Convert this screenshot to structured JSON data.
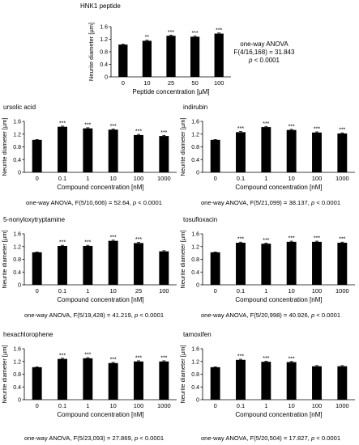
{
  "figure": {
    "bar_color": "#000000",
    "axis_color": "#000000",
    "background": "#ffffff",
    "significance_marker_note": "stars shown above bars"
  },
  "chart_data": [
    {
      "id": "hnk1",
      "type": "bar",
      "title": "HNK1 peptide",
      "categories": [
        "0",
        "10",
        "25",
        "50",
        "100"
      ],
      "values": [
        1.03,
        1.15,
        1.31,
        1.28,
        1.38
      ],
      "errors": [
        0.01,
        0.02,
        0.02,
        0.02,
        0.02
      ],
      "sig": [
        "",
        "**",
        "***",
        "***",
        "***"
      ],
      "ylabel": "Neurite diameter [µm]",
      "xlabel": "Peptide concentration [µM]",
      "ylim": [
        0,
        1.6
      ],
      "yticks": [
        "0",
        "0.4",
        "0.8",
        "1.2",
        "1.6"
      ],
      "stats": {
        "line1": "one-way ANOVA",
        "line2": "F(4/16,168) = 31.843",
        "line3_p": "p",
        "line3_rest": " < 0.0001"
      }
    },
    {
      "id": "ursolic",
      "type": "bar",
      "title": "ursolic acid",
      "categories": [
        "0",
        "0.1",
        "1",
        "10",
        "100",
        "1000"
      ],
      "values": [
        1.02,
        1.43,
        1.38,
        1.34,
        1.17,
        1.14
      ],
      "errors": [
        0.01,
        0.02,
        0.02,
        0.02,
        0.02,
        0.02
      ],
      "sig": [
        "",
        "***",
        "***",
        "***",
        "***",
        "***"
      ],
      "ylabel": "Neurite diameter [µm]",
      "xlabel": "Compound concentration [nM]",
      "ylim": [
        0,
        1.6
      ],
      "yticks": [
        "0",
        "0.4",
        "0.8",
        "1.2",
        "1.6"
      ],
      "stats": {
        "prefix": "one-way ANOVA, F(5/10,606) = 52.64, ",
        "p": "p",
        "suffix": " < 0.0001"
      }
    },
    {
      "id": "indirubin",
      "type": "bar",
      "title": "indirubin",
      "categories": [
        "0",
        "0.1",
        "1",
        "10",
        "100",
        "1000"
      ],
      "values": [
        1.02,
        1.26,
        1.42,
        1.33,
        1.25,
        1.22
      ],
      "errors": [
        0.01,
        0.02,
        0.02,
        0.02,
        0.02,
        0.02
      ],
      "sig": [
        "",
        "***",
        "***",
        "***",
        "***",
        "***"
      ],
      "ylabel": "Neurite diameter [µm]",
      "xlabel": "Compound concentration [nM]",
      "ylim": [
        0,
        1.6
      ],
      "yticks": [
        "0",
        "0.4",
        "0.8",
        "1.2",
        "1.6"
      ],
      "stats": {
        "prefix": "one-way ANOVA, F(5/21,099) = 38.137, ",
        "p": "p",
        "suffix": " < 0.0001"
      }
    },
    {
      "id": "nonyloxy",
      "type": "bar",
      "title": "5-nonyloxytryptamine",
      "categories": [
        "0",
        "0.1",
        "1",
        "10",
        "25",
        "100"
      ],
      "values": [
        1.02,
        1.22,
        1.22,
        1.38,
        1.31,
        1.05
      ],
      "errors": [
        0.01,
        0.02,
        0.02,
        0.02,
        0.02,
        0.02
      ],
      "sig": [
        "",
        "***",
        "***",
        "***",
        "***",
        ""
      ],
      "ylabel": "Neurite diameter [µm]",
      "xlabel": "Compound concentration [nM]",
      "ylim": [
        0,
        1.6
      ],
      "yticks": [
        "0",
        "0.4",
        "0.8",
        "1.2",
        "1.6"
      ],
      "stats": {
        "prefix": "one-way ANOVA, F(5/19,428) = 41.219, ",
        "p": "p",
        "suffix": " < 0.0001"
      }
    },
    {
      "id": "tosufloxacin",
      "type": "bar",
      "title": "tosufloxacin",
      "categories": [
        "0",
        "0.1",
        "1",
        "10",
        "100",
        "1000"
      ],
      "values": [
        1.02,
        1.32,
        1.29,
        1.35,
        1.35,
        1.32
      ],
      "errors": [
        0.01,
        0.02,
        0.02,
        0.02,
        0.02,
        0.02
      ],
      "sig": [
        "",
        "***",
        "***",
        "***",
        "***",
        "***"
      ],
      "ylabel": "Neurite diameter [µm]",
      "xlabel": "Compound concentration [nM]",
      "ylim": [
        0,
        1.6
      ],
      "yticks": [
        "0",
        "0.4",
        "0.8",
        "1.2",
        "1.6"
      ],
      "stats": {
        "prefix": "one-way ANOVA, F(5/20,998) = 40.926, ",
        "p": "p",
        "suffix": " < 0.0001"
      }
    },
    {
      "id": "hexachlorophene",
      "type": "bar",
      "title": "hexachlorophene",
      "categories": [
        "0",
        "0.1",
        "1",
        "10",
        "100",
        "1000"
      ],
      "values": [
        1.02,
        1.28,
        1.3,
        1.15,
        1.2,
        1.2
      ],
      "errors": [
        0.01,
        0.02,
        0.02,
        0.02,
        0.02,
        0.02
      ],
      "sig": [
        "",
        "***",
        "***",
        "***",
        "***",
        "***"
      ],
      "ylabel": "Neurite diameter [µm]",
      "xlabel": "Compound concentration [nM]",
      "ylim": [
        0,
        1.6
      ],
      "yticks": [
        "0",
        "0.4",
        "0.8",
        "1.2",
        "1.6"
      ],
      "stats": {
        "prefix": "one-way ANOVA, F(5/23,093) = 27.869, ",
        "p": "p",
        "suffix": " < 0.0001"
      }
    },
    {
      "id": "tamoxifen",
      "type": "bar",
      "title": "tamoxifen",
      "categories": [
        "0",
        "0.1",
        "1",
        "10",
        "100",
        "1000"
      ],
      "values": [
        1.02,
        1.25,
        1.19,
        1.18,
        1.05,
        1.05
      ],
      "errors": [
        0.01,
        0.02,
        0.02,
        0.02,
        0.02,
        0.02
      ],
      "sig": [
        "",
        "***",
        "***",
        "***",
        "",
        ""
      ],
      "ylabel": "Neurite diameter [µm]",
      "xlabel": "Compound concentration [nM]",
      "ylim": [
        0,
        1.6
      ],
      "yticks": [
        "0",
        "0.4",
        "0.8",
        "1.2",
        "1.6"
      ],
      "stats": {
        "prefix": "one-way ANOVA, F(5/20,504) = 17.827, ",
        "p": "p",
        "suffix": " < 0.0001"
      }
    }
  ]
}
